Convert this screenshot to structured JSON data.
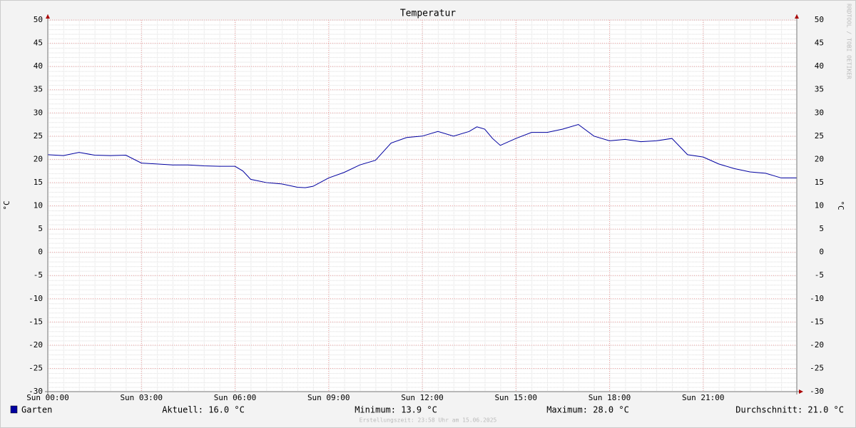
{
  "chart_data": {
    "type": "line",
    "title": "Temperatur",
    "y_label": "°C",
    "watermark": "RRDTOOL / TOBI OETIKER",
    "x": [
      0,
      0.5,
      1,
      1.5,
      2,
      2.5,
      3,
      3.5,
      4,
      4.5,
      5,
      5.5,
      6,
      6.25,
      6.5,
      7,
      7.5,
      8,
      8.25,
      8.5,
      9,
      9.5,
      10,
      10.5,
      11,
      11.5,
      12,
      12.5,
      13,
      13.5,
      13.75,
      14,
      14.25,
      14.5,
      15,
      15.5,
      16,
      16.5,
      17,
      17.5,
      18,
      18.5,
      19,
      19.5,
      20,
      20.5,
      21,
      21.5,
      22,
      22.5,
      23,
      23.5,
      24
    ],
    "series": [
      {
        "name": "Garten",
        "color": "#0000a0",
        "values": [
          21.0,
          20.8,
          21.5,
          20.9,
          20.8,
          20.9,
          19.2,
          19.0,
          18.8,
          18.8,
          18.6,
          18.5,
          18.5,
          17.5,
          15.7,
          15.0,
          14.7,
          14.0,
          13.9,
          14.2,
          16.0,
          17.2,
          18.8,
          19.8,
          23.5,
          24.7,
          25.0,
          26.0,
          25.0,
          26.0,
          27.0,
          26.5,
          24.5,
          23.0,
          24.5,
          25.8,
          25.8,
          26.5,
          27.5,
          25.0,
          24.0,
          24.3,
          23.8,
          24.0,
          24.5,
          21.0,
          20.5,
          19.0,
          18.0,
          17.3,
          17.0,
          16.0,
          16.0
        ]
      }
    ],
    "xlim": [
      0,
      24
    ],
    "xticks": [
      {
        "value": 0,
        "label": "Sun 00:00"
      },
      {
        "value": 3,
        "label": "Sun 03:00"
      },
      {
        "value": 6,
        "label": "Sun 06:00"
      },
      {
        "value": 9,
        "label": "Sun 09:00"
      },
      {
        "value": 12,
        "label": "Sun 12:00"
      },
      {
        "value": 15,
        "label": "Sun 15:00"
      },
      {
        "value": 18,
        "label": "Sun 18:00"
      },
      {
        "value": 21,
        "label": "Sun 21:00"
      }
    ],
    "ylim": [
      -30,
      50
    ],
    "yticks": [
      -30,
      -25,
      -20,
      -15,
      -10,
      -5,
      0,
      5,
      10,
      15,
      20,
      25,
      30,
      35,
      40,
      45,
      50
    ],
    "grid": true,
    "stats": [
      "Aktuell: 16.0 °C",
      "Minimum: 13.9 °C",
      "Maximum: 28.0 °C",
      "Durchschnitt: 21.0 °C"
    ],
    "footer": "Erstellungszeit: 23:58 Uhr am 15.06.2025"
  }
}
